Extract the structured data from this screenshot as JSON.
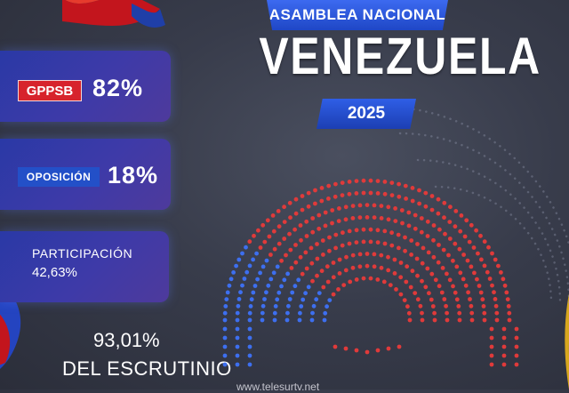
{
  "header": {
    "title": "ASAMBLEA NACIONAL",
    "country": "VENEZUELA",
    "year": "2025"
  },
  "results": {
    "gppsb": {
      "label": "GPPSB",
      "percent": "82%",
      "value": 82
    },
    "oposicion": {
      "label": "OPOSICIÓN",
      "percent": "18%",
      "value": 18
    }
  },
  "participation": {
    "label": "PARTICIPACIÓN",
    "value": "42,63%"
  },
  "scrutiny": {
    "percent": "93,01%",
    "label": "DEL ESCRUTINIO"
  },
  "footer": {
    "website": "www.telesurtv.net"
  },
  "colors": {
    "gppsb": "#d7232c",
    "oposicion": "#2350c8",
    "seat_red": "#e03a3a",
    "seat_blue": "#3d6ff0",
    "card": "#3a3aa6"
  },
  "parliament": {
    "seat_share": {
      "gppsb": 82,
      "oposicion": 18
    }
  }
}
